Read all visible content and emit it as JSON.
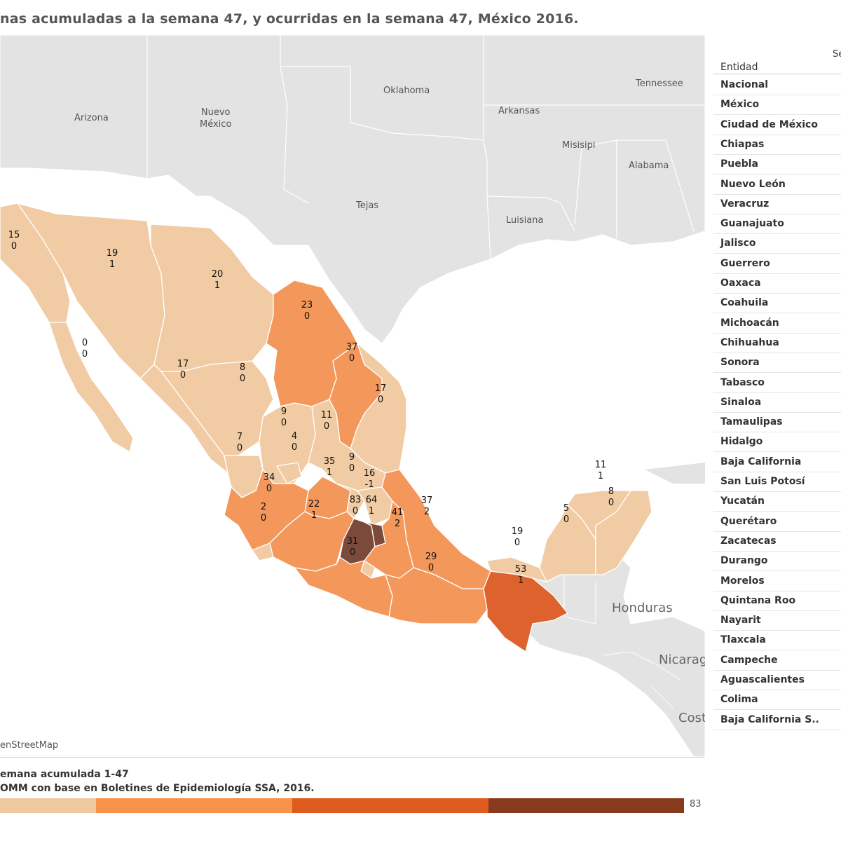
{
  "title": "nas acumuladas a la semana 47, y ocurridas en la semana 47, México 2016.",
  "neighbor_labels": {
    "arizona": "Arizona",
    "nuevo_mexico": "Nuevo\nMéxico",
    "oklahoma": "Oklahoma",
    "arkansas": "Arkansas",
    "tennessee": "Tennessee",
    "misisipi": "Misisipi",
    "alabama": "Alabama",
    "tejas": "Tejas",
    "luisiana": "Luisiana",
    "honduras": "Honduras",
    "nicaragua": "Nicarag",
    "costa": "Cost"
  },
  "map_attribution": "enStreetMap",
  "state_values": [
    {
      "state": "Baja California",
      "a": "15",
      "b": "0",
      "cls": "c1"
    },
    {
      "state": "Sonora",
      "a": "19",
      "b": "1",
      "cls": "c1"
    },
    {
      "state": "Chihuahua",
      "a": "20",
      "b": "1",
      "cls": "c1"
    },
    {
      "state": "Coahuila",
      "a": "23",
      "b": "0",
      "cls": "c2"
    },
    {
      "state": "Nuevo León",
      "a": "37",
      "b": "0",
      "cls": "c2"
    },
    {
      "state": "Baja California Sur",
      "a": "0",
      "b": "0",
      "cls": "c1"
    },
    {
      "state": "Sinaloa",
      "a": "17",
      "b": "0",
      "cls": "c1"
    },
    {
      "state": "Durango",
      "a": "8",
      "b": "0",
      "cls": "c1"
    },
    {
      "state": "Tamaulipas",
      "a": "17",
      "b": "0",
      "cls": "c1"
    },
    {
      "state": "Zacatecas",
      "a": "9",
      "b": "0",
      "cls": "c1"
    },
    {
      "state": "San Luis Potosí",
      "a": "11",
      "b": "0",
      "cls": "c1"
    },
    {
      "state": "Nayarit",
      "a": "7",
      "b": "0",
      "cls": "c1"
    },
    {
      "state": "Aguascalientes",
      "a": "4",
      "b": "0",
      "cls": "c1"
    },
    {
      "state": "Guanajuato",
      "a": "35",
      "b": "1",
      "cls": "c2"
    },
    {
      "state": "Querétaro",
      "a": "9",
      "b": "0",
      "cls": "c1"
    },
    {
      "state": "Hidalgo",
      "a": "16",
      "b": "-1",
      "cls": "c1"
    },
    {
      "state": "Jalisco",
      "a": "34",
      "b": "0",
      "cls": "c2"
    },
    {
      "state": "Colima",
      "a": "2",
      "b": "0",
      "cls": "c1"
    },
    {
      "state": "Michoacán",
      "a": "22",
      "b": "1",
      "cls": "c2"
    },
    {
      "state": "México",
      "a": "83",
      "b": "0",
      "cls": "c4"
    },
    {
      "state": "Ciudad de México",
      "a": "64",
      "b": "1",
      "cls": "c4"
    },
    {
      "state": "Puebla",
      "a": "41",
      "b": "2",
      "cls": "c2"
    },
    {
      "state": "Veracruz",
      "a": "37",
      "b": "2",
      "cls": "c2"
    },
    {
      "state": "Guerrero",
      "a": "31",
      "b": "0",
      "cls": "c2"
    },
    {
      "state": "Oaxaca",
      "a": "29",
      "b": "0",
      "cls": "c2"
    },
    {
      "state": "Chiapas",
      "a": "53",
      "b": "1",
      "cls": "c3"
    },
    {
      "state": "Tabasco",
      "a": "19",
      "b": "0",
      "cls": "c1"
    },
    {
      "state": "Campeche",
      "a": "5",
      "b": "0",
      "cls": "c1"
    },
    {
      "state": "Yucatán",
      "a": "11",
      "b": "1",
      "cls": "c1"
    },
    {
      "state": "Quintana Roo",
      "a": "8",
      "b": "0",
      "cls": "c1"
    }
  ],
  "table": {
    "top_header": "Se",
    "column_header": "Entidad",
    "rows": [
      "Nacional",
      "México",
      "Ciudad de México",
      "Chiapas",
      "Puebla",
      "Nuevo León",
      "Veracruz",
      "Guanajuato",
      "Jalisco",
      "Guerrero",
      "Oaxaca",
      "Coahuila",
      "Michoacán",
      "Chihuahua",
      "Sonora",
      "Tabasco",
      "Sinaloa",
      "Tamaulipas",
      "Hidalgo",
      "Baja California",
      "San Luis Potosí",
      "Yucatán",
      "Querétaro",
      "Zacatecas",
      "Durango",
      "Morelos",
      "Quintana Roo",
      "Nayarit",
      "Tlaxcala",
      "Campeche",
      "Aguascalientes",
      "Colima",
      "Baja California S.."
    ]
  },
  "footer": {
    "line1": "emana acumulada 1-47",
    "line2": "OMM con base en Boletines de Epidemiología SSA, 2016."
  },
  "scale": {
    "max_label": "83",
    "colors": [
      "#f0c8a0",
      "#f6924a",
      "#dd5b1e",
      "#8a3a1c"
    ]
  },
  "colors": {
    "c1": "#f1cba3",
    "c2": "#f4975a",
    "c3": "#dd622d",
    "c4": "#7b4a3b",
    "land": "#e5e5e5",
    "sea": "#ffffff"
  }
}
